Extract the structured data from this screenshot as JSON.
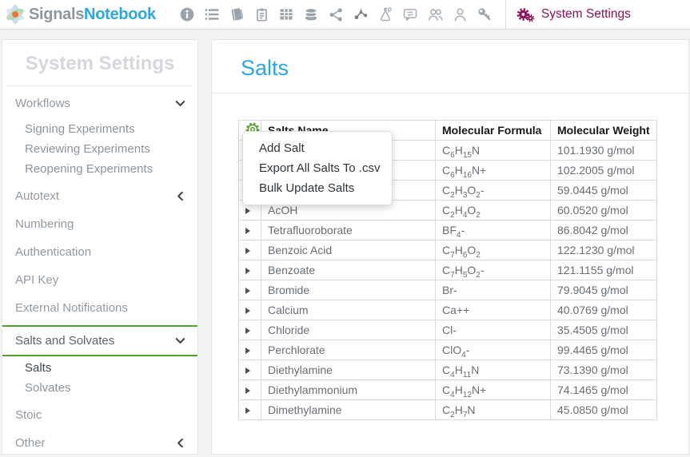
{
  "brand": {
    "name_primary": "Signals",
    "name_secondary": "Notebook"
  },
  "nav": {
    "icons": [
      "info-icon",
      "list-icon",
      "notebook-icon",
      "clipboard-icon",
      "table-icon",
      "database-icon",
      "share-icon",
      "molecule-icon",
      "flask-icon",
      "chat-icon",
      "users-icon",
      "user-icon",
      "key-icon"
    ],
    "section_label": "System Settings"
  },
  "sidebar": {
    "title": "System Settings",
    "items": [
      {
        "label": "Workflows",
        "chevron": "down",
        "children": [
          {
            "label": "Signing Experiments"
          },
          {
            "label": "Reviewing Experiments"
          },
          {
            "label": "Reopening Experiments"
          }
        ]
      },
      {
        "label": "Autotext",
        "chevron": "left"
      },
      {
        "label": "Numbering"
      },
      {
        "label": "Authentication"
      },
      {
        "label": "API Key"
      },
      {
        "label": "External Notifications"
      },
      {
        "label": "Salts and Solvates",
        "chevron": "down",
        "active": true,
        "children": [
          {
            "label": "Salts",
            "selected": true
          },
          {
            "label": "Solvates"
          }
        ]
      },
      {
        "label": "Stoic"
      },
      {
        "label": "Other",
        "chevron": "left"
      }
    ]
  },
  "main": {
    "title": "Salts",
    "table": {
      "columns": [
        "Salts Name",
        "Molecular Formula",
        "Molecular Weight"
      ],
      "rows": [
        {
          "name": "",
          "formula": "C6H15N",
          "weight": "101.1930 g/mol"
        },
        {
          "name": "",
          "formula": "C6H16N+",
          "weight": "102.2005 g/mol"
        },
        {
          "name": "",
          "formula": "C2H3O2-",
          "weight": "59.0445 g/mol"
        },
        {
          "name": "AcOH",
          "formula": "C2H4O2",
          "weight": "60.0520 g/mol"
        },
        {
          "name": "Tetrafluoroborate",
          "formula": "BF4-",
          "weight": "86.8042 g/mol"
        },
        {
          "name": "Benzoic Acid",
          "formula": "C7H6O2",
          "weight": "122.1230 g/mol"
        },
        {
          "name": "Benzoate",
          "formula": "C7H5O2-",
          "weight": "121.1155 g/mol"
        },
        {
          "name": "Bromide",
          "formula": "Br-",
          "weight": "79.9045 g/mol"
        },
        {
          "name": "Calcium",
          "formula": "Ca++",
          "weight": "40.0769 g/mol"
        },
        {
          "name": "Chloride",
          "formula": "Cl-",
          "weight": "35.4505 g/mol"
        },
        {
          "name": "Perchlorate",
          "formula": "ClO4-",
          "weight": "99.4465 g/mol"
        },
        {
          "name": "Diethylamine",
          "formula": "C4H11N",
          "weight": "73.1390 g/mol"
        },
        {
          "name": "Diethylammonium",
          "formula": "C4H12N+",
          "weight": "74.1465 g/mol"
        },
        {
          "name": "Dimethylamine",
          "formula": "C2H7N",
          "weight": "45.0850 g/mol"
        }
      ]
    },
    "menu": {
      "items": [
        "Add Salt",
        "Export All Salts To .csv",
        "Bulk Update Salts"
      ]
    }
  },
  "colors": {
    "accent_green": "#53a12c",
    "brand_blue": "#29a9e1",
    "brand_gray": "#8d979e",
    "settings_magenta": "#8c1157",
    "title_blue": "#2aa7e8",
    "icon_gray": "#99a3ab"
  }
}
